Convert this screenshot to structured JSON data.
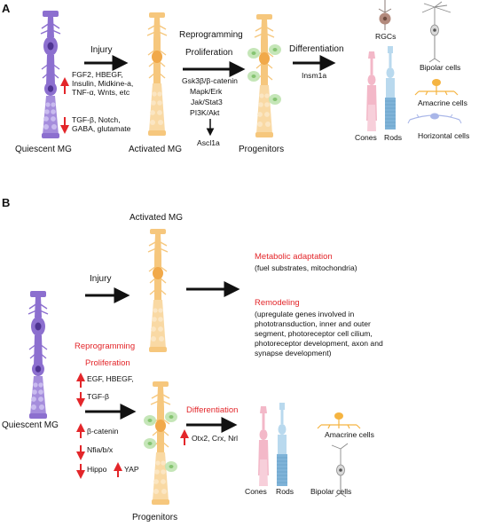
{
  "colors": {
    "quiescent": "#8c6fcf",
    "quiescent_light": "#b9a7e6",
    "activated": "#f6c77d",
    "activated_dark": "#f1a94a",
    "progenitor_green": "#bfe3b0",
    "red_arrow": "#e3262a",
    "cone": "#f3b8c8",
    "rod": "#b9d9ee",
    "rgc": "#b38a7d",
    "bipolar": "#9a9a9a",
    "amacrine": "#f5b441",
    "horizontal": "#a9b6e8"
  },
  "panelA": {
    "label": "A",
    "quiescent_label": "Quiescent MG",
    "injury_label": "Injury",
    "up_factors": [
      "FGF2, HBEGF,",
      "Insulin, Midkine-a,",
      "TNF-α, Wnts, etc"
    ],
    "down_factors": [
      "TGF-β, Notch,",
      "GABA, glutamate"
    ],
    "activated_label": "Activated MG",
    "reprogramming": "Reprogramming",
    "proliferation": "Proliferation",
    "pathways": [
      "Gsk3β/β-catenin",
      "Mapk/Erk",
      "Jak/Stat3",
      "PI3K/Akt"
    ],
    "ascl1a": "Ascl1a",
    "progenitors_label": "Progenitors",
    "differentiation": "Differentiation",
    "insm1a": "Insm1a",
    "rgcs": "RGCs",
    "bipolar": "Bipolar cells",
    "cones": "Cones",
    "rods": "Rods",
    "amacrine": "Amacrine cells",
    "horizontal": "Horizontal cells"
  },
  "panelB": {
    "label": "B",
    "activated_label": "Activated MG",
    "injury_label": "Injury",
    "metabolic_title": "Metabolic adaptation",
    "metabolic_desc": "(fuel substrates, mitochondria)",
    "remodeling_title": "Remodeling",
    "remodeling_desc": [
      "(upregulate genes involved in",
      "phototransduction, inner and outer",
      "segment, photoreceptor cell cilium,",
      "photoreceptor development, axon and",
      "synapse development)"
    ],
    "quiescent_label": "Quiescent MG",
    "reprogramming": "Reprogramming",
    "proliferation": "Proliferation",
    "up_factors": "EGF, HBEGF,",
    "down_factors": "TGF-β",
    "beta_catenin": "β-catenin",
    "nfia": "Nfia/b/x",
    "hippo": "Hippo",
    "yap": "YAP",
    "differentiation": "Differentiation",
    "otx2": "Otx2, Crx, Nrl",
    "cones": "Cones",
    "rods": "Rods",
    "amacrine": "Amacrine cells",
    "bipolar": "Bipolar cells",
    "progenitors_label": "Progenitors"
  }
}
